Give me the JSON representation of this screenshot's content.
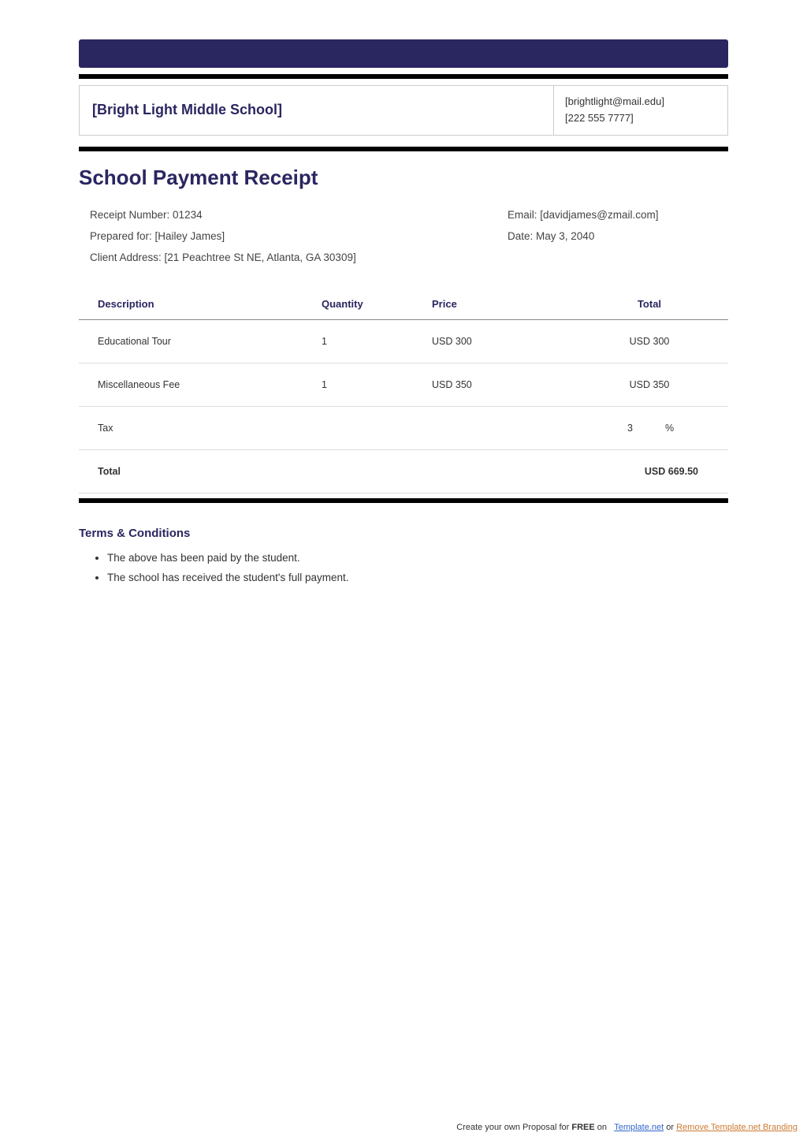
{
  "colors": {
    "accent": "#2a2660",
    "rule": "#000000",
    "border": "#cccccc",
    "row_border": "#dddddd",
    "text": "#333333"
  },
  "header": {
    "school_name": "[Bright Light Middle School]",
    "email": "[brightlight@mail.edu]",
    "phone": "[222 555 7777]"
  },
  "title": "School Payment Receipt",
  "meta": {
    "receipt_number_label": "Receipt Number: ",
    "receipt_number": "01234",
    "prepared_for_label": "Prepared for: ",
    "prepared_for": "[Hailey James]",
    "client_address_label": "Client Address: ",
    "client_address": "[21 Peachtree St NE, Atlanta, GA 30309]",
    "email_label": "Email: ",
    "email": "[davidjames@zmail.com]",
    "date_label": "Date: ",
    "date": "May 3, 2040"
  },
  "table": {
    "columns": {
      "description": "Description",
      "quantity": "Quantity",
      "price": "Price",
      "total": "Total"
    },
    "rows": [
      {
        "description": "Educational Tour",
        "quantity": "1",
        "price": "USD 300",
        "total": "USD 300"
      },
      {
        "description": "Miscellaneous Fee",
        "quantity": "1",
        "price": "USD 350",
        "total": "USD 350"
      }
    ],
    "tax_label": "Tax",
    "tax_value": "3",
    "tax_unit": "%",
    "grand_total_label": "Total",
    "grand_total_value": "USD 669.50"
  },
  "terms": {
    "title": "Terms & Conditions",
    "items": [
      "The above has been paid by the student.",
      "The school has received the student's full payment."
    ]
  },
  "footer": {
    "prefix": "Create your own Proposal for ",
    "free": "FREE",
    "on": " on ",
    "link1": "Template.net",
    "or": " or ",
    "link2": "Remove Template.net Branding"
  }
}
